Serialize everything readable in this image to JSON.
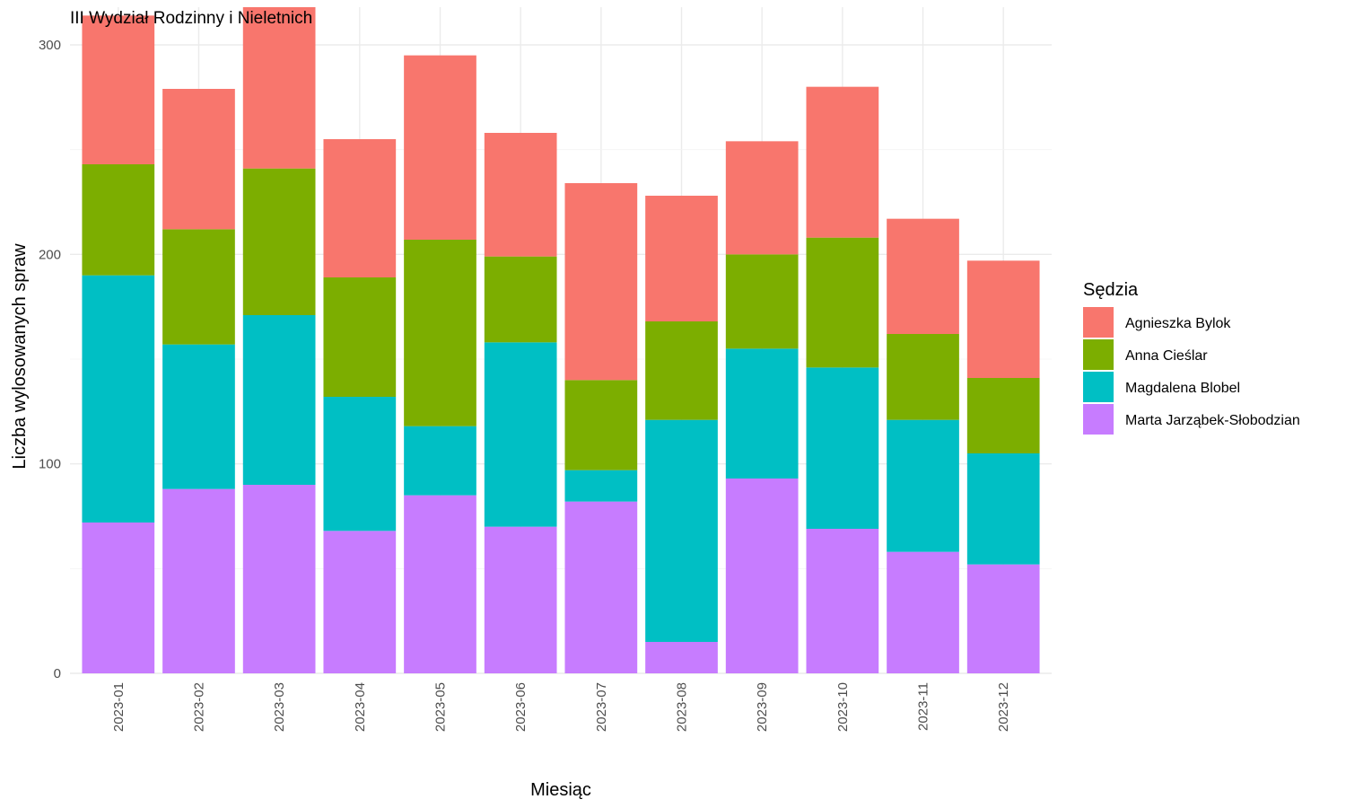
{
  "chart_data": {
    "type": "bar",
    "stacked": true,
    "title": "III Wydział Rodzinny i Nieletnich",
    "xlabel": "Miesiąc",
    "ylabel": "Liczba wylosowanych spraw",
    "ylim": [
      0,
      318
    ],
    "yticks": [
      0,
      100,
      200,
      300
    ],
    "grid": true,
    "legend_position": "right",
    "categories": [
      "2023-01",
      "2023-02",
      "2023-03",
      "2023-04",
      "2023-05",
      "2023-06",
      "2023-07",
      "2023-08",
      "2023-09",
      "2023-10",
      "2023-11",
      "2023-12"
    ],
    "legend": {
      "title": "Sędzia",
      "entries": [
        "Agnieszka Bylok",
        "Anna Cieślar",
        "Magdalena Blobel",
        "Marta Jarząbek-Słobodzian"
      ]
    },
    "series": [
      {
        "name": "Marta Jarząbek-Słobodzian",
        "color": "#C77CFF",
        "values": [
          72,
          88,
          90,
          68,
          85,
          70,
          82,
          15,
          93,
          69,
          58,
          52
        ]
      },
      {
        "name": "Magdalena Blobel",
        "color": "#00BFC4",
        "values": [
          118,
          69,
          81,
          64,
          33,
          88,
          15,
          106,
          62,
          77,
          63,
          53
        ]
      },
      {
        "name": "Anna Cieślar",
        "color": "#7CAE00",
        "values": [
          53,
          55,
          70,
          57,
          89,
          41,
          43,
          47,
          45,
          62,
          41,
          36
        ]
      },
      {
        "name": "Agnieszka Bylok",
        "color": "#F8766D",
        "values": [
          71,
          67,
          77,
          66,
          88,
          59,
          94,
          60,
          54,
          72,
          55,
          56
        ]
      }
    ]
  }
}
